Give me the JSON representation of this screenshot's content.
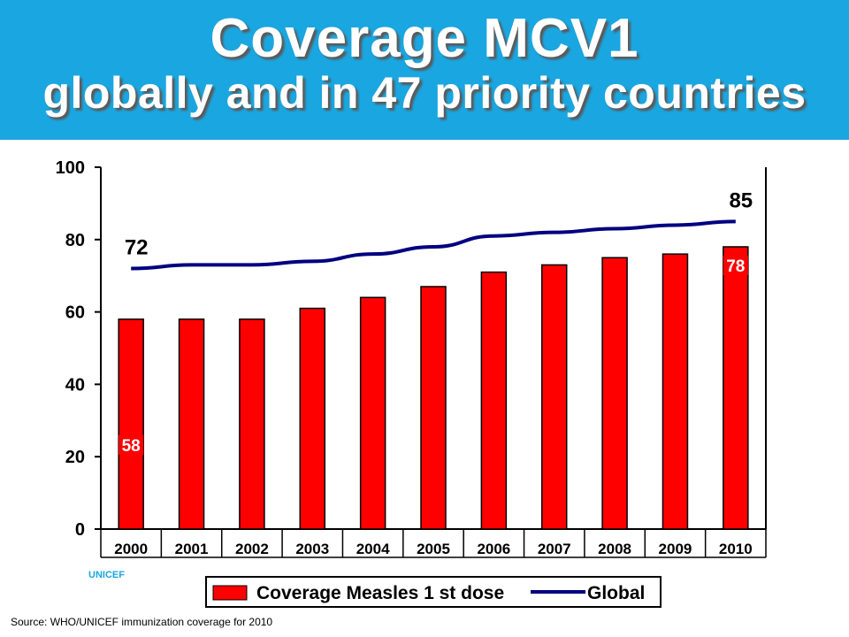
{
  "header": {
    "title": "Coverage MCV1",
    "subtitle": "globally and in 47 priority countries"
  },
  "colors": {
    "header_bg": "#1aa6e0",
    "bar": "#ff0000",
    "line": "#000080"
  },
  "chart_data": {
    "type": "bar",
    "categories": [
      "2000",
      "2001",
      "2002",
      "2003",
      "2004",
      "2005",
      "2006",
      "2007",
      "2008",
      "2009",
      "2010"
    ],
    "series": [
      {
        "name": "Coverage Measles 1 st dose",
        "type": "bar",
        "values": [
          58,
          58,
          58,
          61,
          64,
          67,
          71,
          73,
          75,
          76,
          78
        ]
      },
      {
        "name": "Global",
        "type": "line",
        "values": [
          72,
          73,
          73,
          74,
          76,
          78,
          81,
          82,
          83,
          84,
          85
        ]
      }
    ],
    "ylim": [
      0,
      100
    ],
    "yticks": [
      0,
      20,
      40,
      60,
      80,
      100
    ],
    "data_labels": [
      {
        "series": "Coverage Measles 1 st dose",
        "category": "2000",
        "text": "58"
      },
      {
        "series": "Coverage Measles 1 st dose",
        "category": "2010",
        "text": "78"
      },
      {
        "series": "Global",
        "category": "2000",
        "text": "72"
      },
      {
        "series": "Global",
        "category": "2010",
        "text": "85"
      }
    ],
    "grid": false,
    "legend_position": "bottom"
  },
  "watermark": "UNICEF",
  "source": "Source: WHO/UNICEF immunization coverage for 2010"
}
